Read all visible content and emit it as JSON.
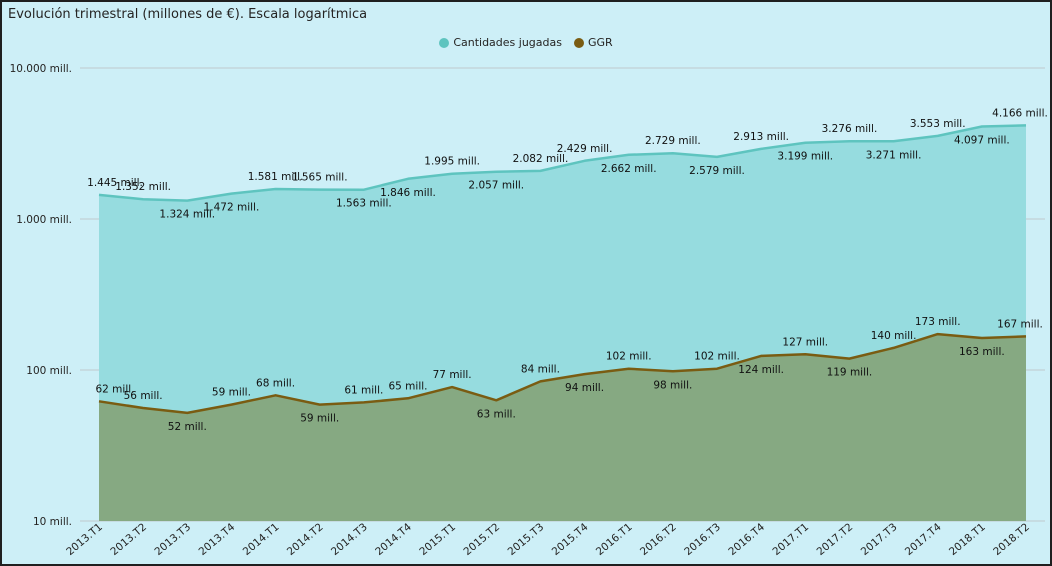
{
  "chart_title": "Evolución trimestral (millones de €). Escala logarítmica",
  "colors": {
    "background": "#cdeff7",
    "series_1": "#5ec4bf",
    "series_1_fill": "#96dcdf",
    "series_2": "#7a5c12",
    "series_2_fill": "#86a982",
    "grid": "#c0c8cc"
  },
  "chart_data": {
    "type": "area",
    "title": "Evolución trimestral (millones de €). Escala logarítmica",
    "xlabel": "",
    "ylabel": "",
    "yscale": "log",
    "ylim": [
      10,
      10000
    ],
    "yticks": [
      10,
      100,
      1000,
      10000
    ],
    "ytick_labels": [
      "10 mill.",
      "100 mill.",
      "1.000 mill.",
      "10.000 mill."
    ],
    "grid": true,
    "legend_position": "top-center",
    "categories": [
      "2013.T1",
      "2013.T2",
      "2013.T3",
      "2013.T4",
      "2014.T1",
      "2014.T2",
      "2014.T3",
      "2014.T4",
      "2015.T1",
      "2015.T2",
      "2015.T3",
      "2015.T4",
      "2016.T1",
      "2016.T2",
      "2016.T3",
      "2016.T4",
      "2017.T1",
      "2017.T2",
      "2017.T3",
      "2017.T4",
      "2018.T1",
      "2018.T2"
    ],
    "series": [
      {
        "name": "Cantidades jugadas",
        "values": [
          1445,
          1352,
          1324,
          1472,
          1581,
          1565,
          1563,
          1846,
          1995,
          2057,
          2082,
          2429,
          2662,
          2729,
          2579,
          2913,
          3199,
          3276,
          3271,
          3553,
          4097,
          4166
        ],
        "labels": [
          "1.445 mill.",
          "1.352 mill.",
          "1.324 mill.",
          "1.472 mill.",
          "1.581 mill.",
          "1.565 mill.",
          "1.563 mill.",
          "1.846 mill.",
          "1.995 mill.",
          "2.057 mill.",
          "2.082 mill.",
          "2.429 mill.",
          "2.662 mill.",
          "2.729 mill.",
          "2.579 mill.",
          "2.913 mill.",
          "3.199 mill.",
          "3.276 mill.",
          "3.271 mill.",
          "3.553 mill.",
          "4.097 mill.",
          "4.166 mill."
        ]
      },
      {
        "name": "GGR",
        "values": [
          62,
          56,
          52,
          59,
          68,
          59,
          61,
          65,
          77,
          63,
          84,
          94,
          102,
          98,
          102,
          124,
          127,
          119,
          140,
          173,
          163,
          167
        ],
        "labels": [
          "62 mill.",
          "56 mill.",
          "52 mill.",
          "59 mill.",
          "68 mill.",
          "59 mill.",
          "61 mill.",
          "65 mill.",
          "77 mill.",
          "63 mill.",
          "84 mill.",
          "94 mill.",
          "102 mill.",
          "98 mill.",
          "102 mill.",
          "124 mill.",
          "127 mill.",
          "119 mill.",
          "140 mill.",
          "173 mill.",
          "163 mill.",
          "167 mill."
        ]
      }
    ]
  }
}
